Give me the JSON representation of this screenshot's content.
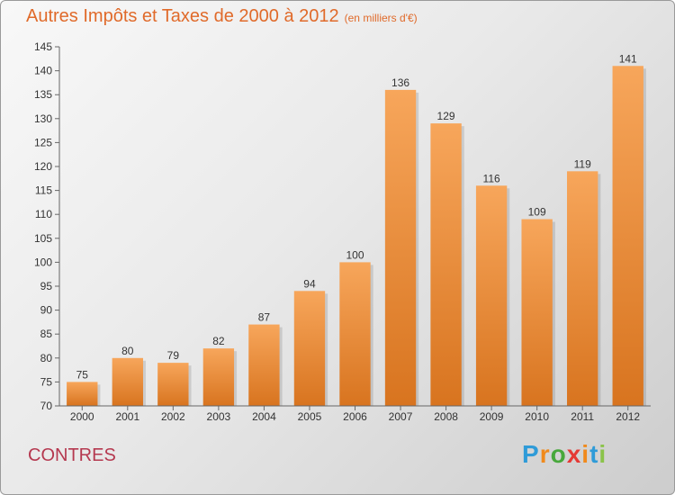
{
  "header": {
    "title": "Autres Impôts et Taxes de 2000 à 2012",
    "subtitle": "(en milliers d'€)"
  },
  "footer": {
    "location": "CONTRES",
    "brand_letters": [
      "P",
      "r",
      "o",
      "x",
      "i",
      "t",
      "i"
    ]
  },
  "colors": {
    "title": "#e06a2a",
    "bar_top": "#f7a65b",
    "bar_bottom": "#d8741f",
    "location": "#b5384f",
    "brand": [
      "#2f9bd8",
      "#f08a1c",
      "#48a83c",
      "#e53935",
      "#f08a1c",
      "#2f9bd8",
      "#8bc34a"
    ]
  },
  "chart_data": {
    "type": "bar",
    "title": "Autres Impôts et Taxes de 2000 à 2012",
    "subtitle": "(en milliers d'€)",
    "categories": [
      "2000",
      "2001",
      "2002",
      "2003",
      "2004",
      "2005",
      "2006",
      "2007",
      "2008",
      "2009",
      "2010",
      "2011",
      "2012"
    ],
    "values": [
      75,
      80,
      79,
      82,
      87,
      94,
      100,
      136,
      129,
      116,
      109,
      119,
      141
    ],
    "ylim": [
      70,
      145
    ],
    "yticks": [
      70,
      75,
      80,
      85,
      90,
      95,
      100,
      105,
      110,
      115,
      120,
      125,
      130,
      135,
      140,
      145
    ],
    "grid": false,
    "data_labels": true,
    "legend": "none"
  }
}
